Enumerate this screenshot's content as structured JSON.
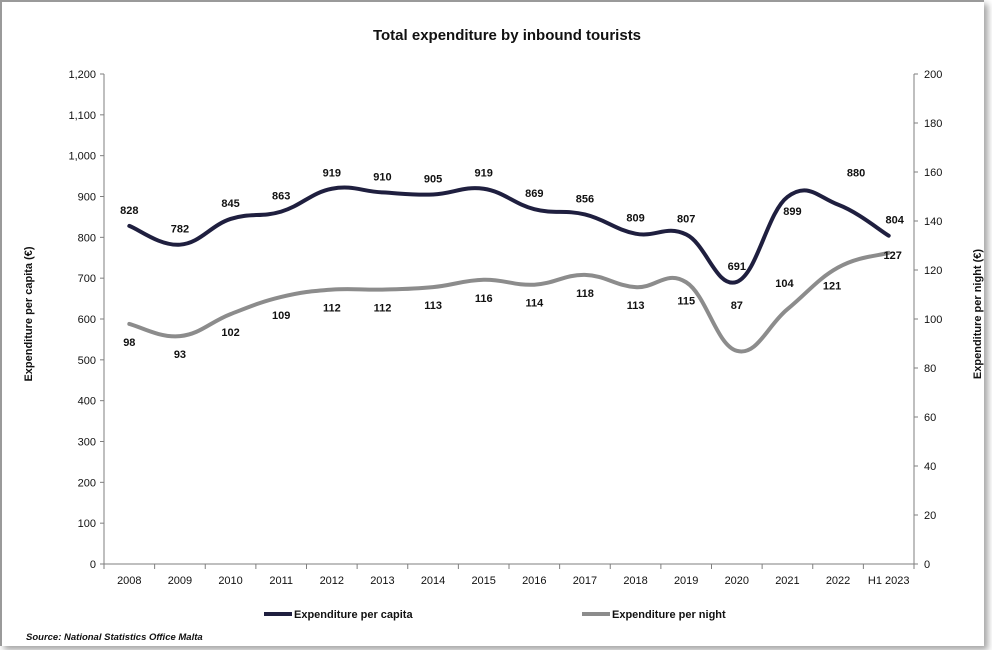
{
  "chart_data": {
    "type": "line",
    "title": "Total expenditure by inbound tourists",
    "categories": [
      "2008",
      "2009",
      "2010",
      "2011",
      "2012",
      "2013",
      "2014",
      "2015",
      "2016",
      "2017",
      "2018",
      "2019",
      "2020",
      "2021",
      "2022",
      "H1 2023"
    ],
    "series": [
      {
        "name": "Expenditure per capita",
        "axis": "left",
        "color": "#1f1f3f",
        "values": [
          828,
          782,
          845,
          863,
          919,
          910,
          905,
          919,
          869,
          856,
          809,
          807,
          691,
          899,
          880,
          804
        ]
      },
      {
        "name": "Expenditure per night",
        "axis": "right",
        "color": "#8c8c8c",
        "values": [
          98,
          93,
          102,
          109,
          112,
          112,
          113,
          116,
          114,
          118,
          113,
          115,
          87,
          104,
          121,
          127
        ]
      }
    ],
    "ylabel": "Expenditure per capita (€)",
    "ylabel_right": "Expenditure per night (€)",
    "ylim": [
      0,
      1200
    ],
    "ylim_right": [
      0,
      200
    ],
    "yticks": [
      "0",
      "100",
      "200",
      "300",
      "400",
      "500",
      "600",
      "700",
      "800",
      "900",
      "1,000",
      "1,100",
      "1,200"
    ],
    "yticks_right": [
      "0",
      "20",
      "40",
      "60",
      "80",
      "100",
      "120",
      "140",
      "160",
      "180",
      "200"
    ],
    "grid": false,
    "legend_position": "bottom"
  },
  "source": "Source: National Statistics Office Malta"
}
